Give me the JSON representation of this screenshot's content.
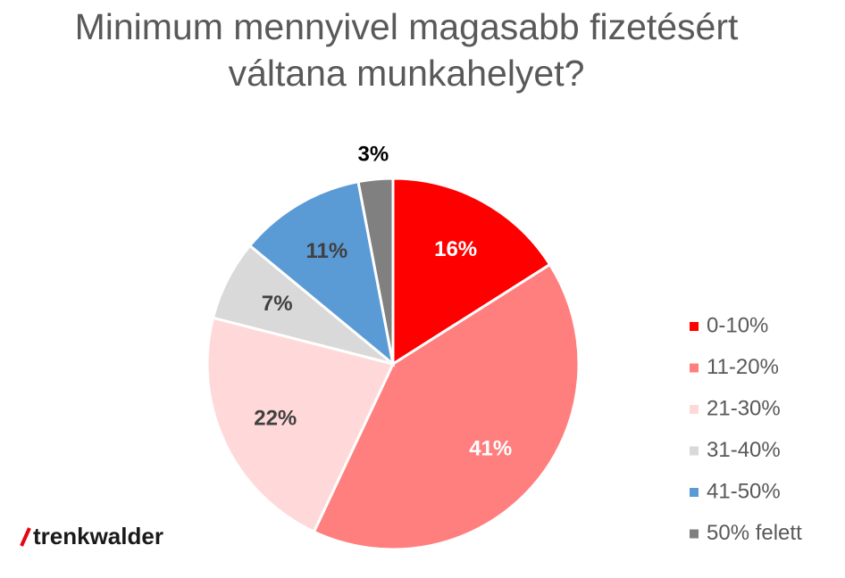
{
  "chart_data": {
    "type": "pie",
    "title": "Minimum mennyivel magasabb fizetésért váltana munkahelyet?",
    "categories": [
      "0-10%",
      "11-20%",
      "21-30%",
      "31-40%",
      "41-50%",
      "50% felett"
    ],
    "values": [
      16,
      41,
      22,
      7,
      11,
      3
    ],
    "value_labels": [
      "16%",
      "41%",
      "22%",
      "7%",
      "11%",
      "3%"
    ],
    "colors": [
      "#ff0000",
      "#ff7f7f",
      "#ffd9d9",
      "#d9d9d9",
      "#5b9bd5",
      "#808080"
    ],
    "legend": "right"
  },
  "logo": "trenkwalder"
}
